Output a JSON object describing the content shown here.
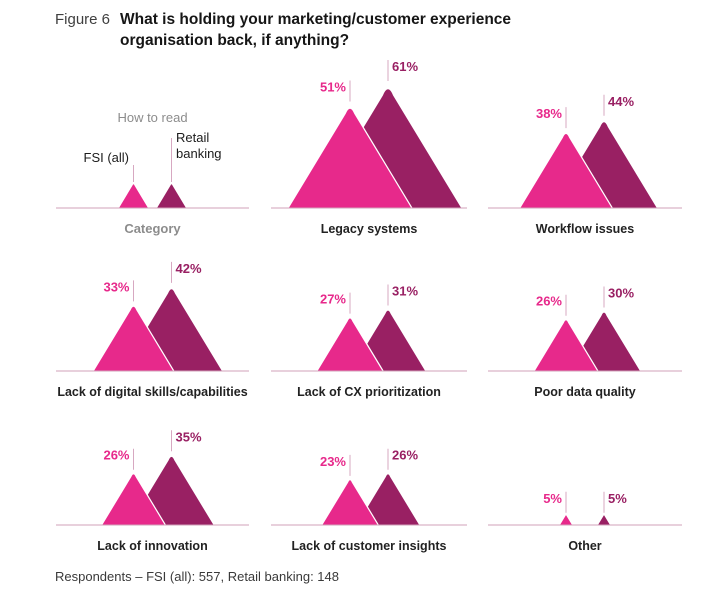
{
  "header": {
    "figure_label": "Figure 6",
    "title": "What is holding your marketing/customer experience organisation back, if anything?"
  },
  "legend": {
    "heading": "How to read",
    "fsi_label": "FSI (all)",
    "retail_label": "Retail banking",
    "category_label": "Category"
  },
  "footer": {
    "note": "Respondents – FSI (all): 557, Retail banking: 148"
  },
  "colors": {
    "fsi_pink": "#e7298b",
    "retail_berry": "#992063",
    "leader_line": "#d7a8c1",
    "baseline": "#d0a2b9",
    "label_gray": "#8c8c8c",
    "text_dark": "#1c1c1c"
  },
  "chart_data": {
    "type": "bar",
    "variant": "overlapping-peak-triangles",
    "title": "What is holding your marketing/customer experience organisation back, if anything?",
    "figure_label": "Figure 6",
    "unit": "%",
    "categories": [
      "Legacy systems",
      "Workflow issues",
      "Lack of digital skills/capabilities",
      "Lack of CX prioritization",
      "Poor data quality",
      "Lack of innovation",
      "Lack of customer insights",
      "Other"
    ],
    "series": [
      {
        "name": "FSI (all)",
        "color": "#e7298b",
        "values": [
          51,
          38,
          33,
          27,
          26,
          26,
          23,
          5
        ]
      },
      {
        "name": "Retail banking",
        "color": "#992063",
        "values": [
          61,
          44,
          42,
          31,
          30,
          35,
          26,
          5
        ]
      }
    ],
    "value_range": [
      0,
      61
    ],
    "grid": "3x3, legend cell top-left",
    "legend_position": "top-left",
    "footnote": "Respondents – FSI (all): 557, Retail banking: 148"
  }
}
